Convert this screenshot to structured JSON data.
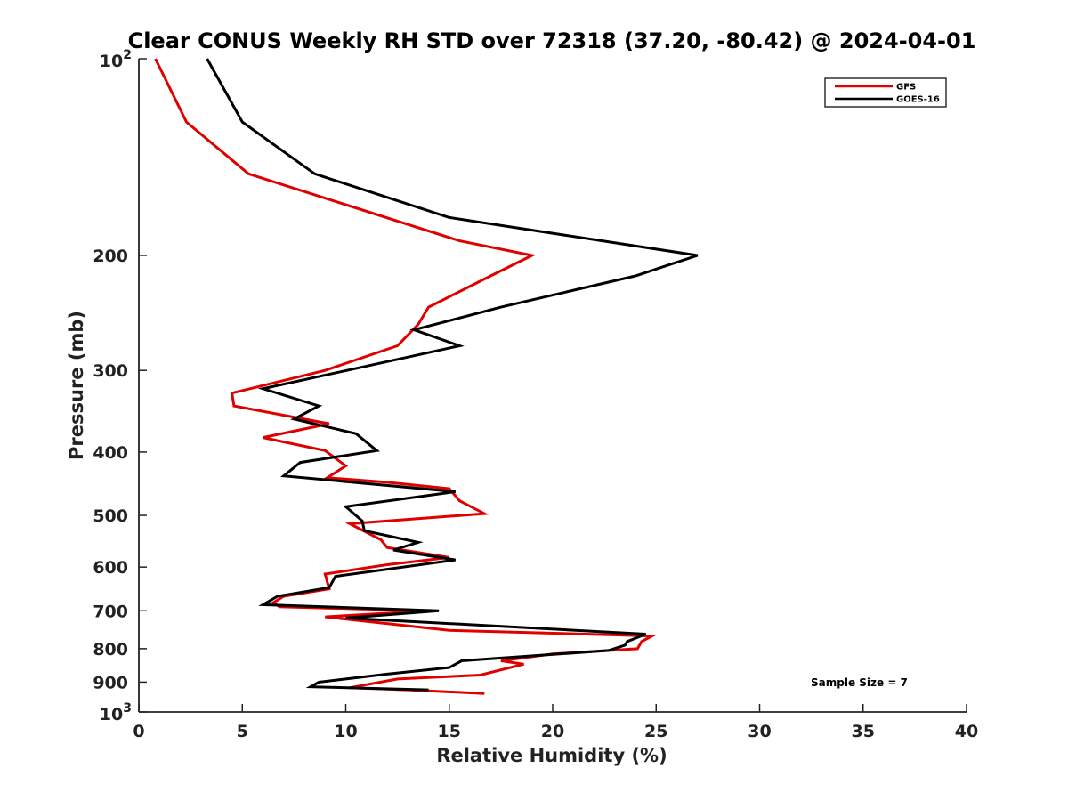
{
  "chart_data": {
    "type": "line",
    "title": "Clear CONUS Weekly RH STD over 72318 (37.20, -80.42) @ 2024-04-01",
    "xlabel": "Relative Humidity (%)",
    "ylabel": "Pressure (mb)",
    "xlim": [
      0,
      40
    ],
    "ylim": [
      100,
      1000
    ],
    "yscale": "log",
    "y_reversed": true,
    "grid": false,
    "legend_position": "top-right",
    "x_ticks": [
      "0",
      "5",
      "10",
      "15",
      "20",
      "25",
      "30",
      "35",
      "40"
    ],
    "y_ticks": [
      {
        "value": 100,
        "base": "10",
        "exp": "2"
      },
      {
        "value": 200,
        "label": "200"
      },
      {
        "value": 300,
        "label": "300"
      },
      {
        "value": 400,
        "label": "400"
      },
      {
        "value": 500,
        "label": "500"
      },
      {
        "value": 600,
        "label": "600"
      },
      {
        "value": 700,
        "label": "700"
      },
      {
        "value": 800,
        "label": "800"
      },
      {
        "value": 900,
        "label": "900"
      },
      {
        "value": 1000,
        "base": "10",
        "exp": "3"
      }
    ],
    "annotation": "Sample Size = 7",
    "series": [
      {
        "name": "GFS",
        "color": "#e00000",
        "points": [
          [
            0.8,
            100
          ],
          [
            2.3,
            125
          ],
          [
            5.3,
            150
          ],
          [
            15.5,
            190
          ],
          [
            19.0,
            200
          ],
          [
            17.0,
            215
          ],
          [
            14.0,
            240
          ],
          [
            13.5,
            255
          ],
          [
            12.5,
            275
          ],
          [
            9.0,
            300
          ],
          [
            4.5,
            325
          ],
          [
            4.6,
            340
          ],
          [
            9.2,
            362
          ],
          [
            6.0,
            380
          ],
          [
            9.0,
            398
          ],
          [
            10.0,
            420
          ],
          [
            9.1,
            438
          ],
          [
            12.0,
            445
          ],
          [
            15.0,
            455
          ],
          [
            15.5,
            475
          ],
          [
            16.7,
            497
          ],
          [
            10.2,
            515
          ],
          [
            11.7,
            545
          ],
          [
            12.0,
            560
          ],
          [
            15.0,
            580
          ],
          [
            12.0,
            595
          ],
          [
            9.0,
            615
          ],
          [
            9.2,
            648
          ],
          [
            7.0,
            665
          ],
          [
            6.5,
            680
          ],
          [
            6.8,
            690
          ],
          [
            14.0,
            700
          ],
          [
            9.0,
            715
          ],
          [
            15.0,
            750
          ],
          [
            24.8,
            765
          ],
          [
            24.3,
            780
          ],
          [
            24.1,
            800
          ],
          [
            20.0,
            815
          ],
          [
            17.5,
            835
          ],
          [
            18.6,
            845
          ],
          [
            16.5,
            878
          ],
          [
            12.5,
            890
          ],
          [
            10.2,
            918
          ],
          [
            13.0,
            925
          ],
          [
            16.7,
            937
          ]
        ]
      },
      {
        "name": "GOES-16",
        "color": "#000000",
        "points": [
          [
            3.3,
            100
          ],
          [
            5.0,
            125
          ],
          [
            8.5,
            150
          ],
          [
            15.0,
            175
          ],
          [
            27.0,
            200
          ],
          [
            24.0,
            215
          ],
          [
            17.5,
            240
          ],
          [
            13.3,
            260
          ],
          [
            15.5,
            275
          ],
          [
            6.0,
            320
          ],
          [
            8.7,
            340
          ],
          [
            7.5,
            356
          ],
          [
            10.5,
            375
          ],
          [
            11.5,
            398
          ],
          [
            7.8,
            415
          ],
          [
            7.0,
            435
          ],
          [
            15.3,
            460
          ],
          [
            10.0,
            485
          ],
          [
            10.8,
            510
          ],
          [
            10.9,
            528
          ],
          [
            13.5,
            550
          ],
          [
            12.3,
            565
          ],
          [
            15.3,
            585
          ],
          [
            9.5,
            620
          ],
          [
            9.2,
            645
          ],
          [
            6.7,
            665
          ],
          [
            6.0,
            685
          ],
          [
            14.5,
            700
          ],
          [
            10.0,
            718
          ],
          [
            12.5,
            725
          ],
          [
            24.5,
            760
          ],
          [
            23.6,
            780
          ],
          [
            23.5,
            790
          ],
          [
            22.7,
            805
          ],
          [
            15.6,
            835
          ],
          [
            15.0,
            855
          ],
          [
            12.0,
            875
          ],
          [
            8.7,
            900
          ],
          [
            8.3,
            915
          ],
          [
            14.0,
            925
          ]
        ]
      }
    ]
  }
}
